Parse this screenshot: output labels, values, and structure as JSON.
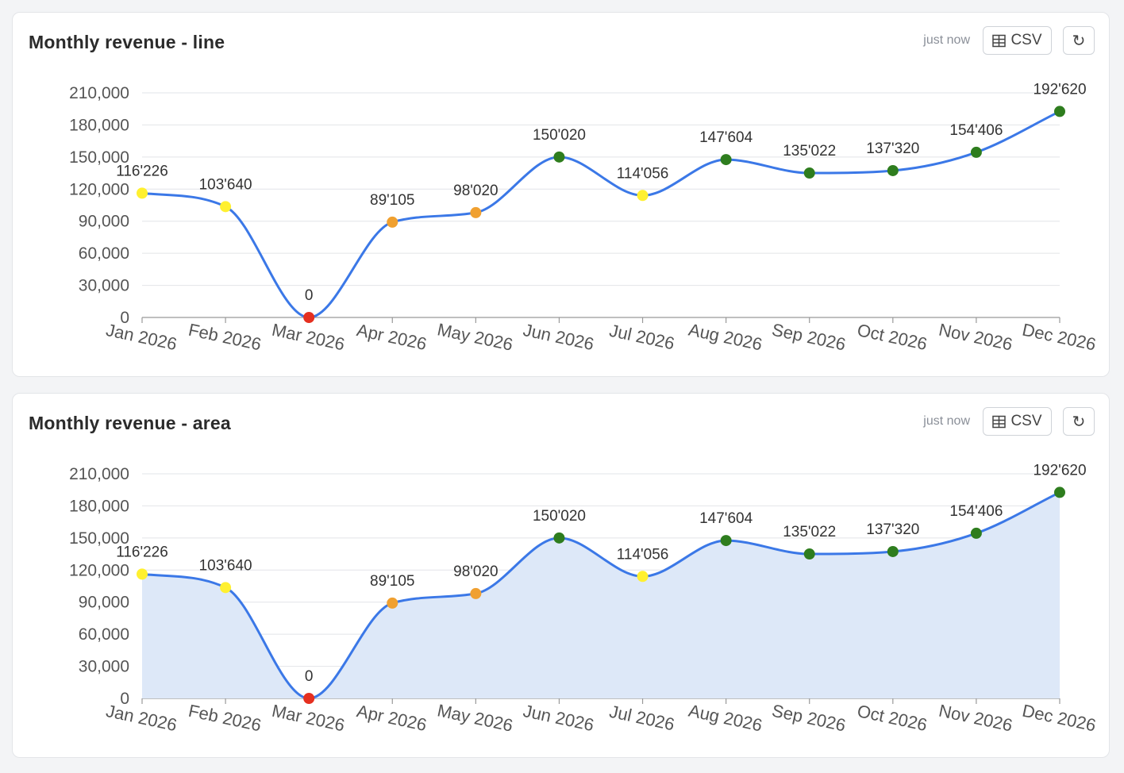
{
  "colors": {
    "line": "#3b78e7",
    "area_fill": "#dde8f8",
    "grid": "#e2e4e8",
    "low": "#e53020",
    "mid": "#f0a030",
    "warn": "#fff030",
    "good": "#2e7d1e"
  },
  "icons": {
    "csv": "table-grid-icon",
    "refresh": "refresh-icon"
  },
  "cards": [
    {
      "title": "Monthly revenue - line",
      "timestamp": "just now",
      "csv_label": "CSV",
      "refresh_label": "↻"
    },
    {
      "title": "Monthly revenue - area",
      "timestamp": "just now",
      "csv_label": "CSV",
      "refresh_label": "↻"
    }
  ],
  "chart_data": [
    {
      "type": "line",
      "categories": [
        "Jan 2026",
        "Feb 2026",
        "Mar 2026",
        "Apr 2026",
        "May 2026",
        "Jun 2026",
        "Jul 2026",
        "Aug 2026",
        "Sep 2026",
        "Oct 2026",
        "Nov 2026",
        "Dec 2026"
      ],
      "values": [
        116226,
        103640,
        0,
        89105,
        98020,
        150020,
        114056,
        147604,
        135022,
        137320,
        154406,
        192620
      ],
      "data_labels": [
        "116'226",
        "103'640",
        "0",
        "89'105",
        "98'020",
        "150'020",
        "114'056",
        "147'604",
        "135'022",
        "137'320",
        "154'406",
        "192'620"
      ],
      "point_colors": [
        "warn",
        "warn",
        "low",
        "mid",
        "mid",
        "good",
        "warn",
        "good",
        "good",
        "good",
        "good",
        "good"
      ],
      "yticks": [
        "0",
        "30,000",
        "60,000",
        "90,000",
        "120,000",
        "150,000",
        "180,000",
        "210,000"
      ],
      "ylim": [
        0,
        210000
      ],
      "grid": true,
      "smooth": true
    },
    {
      "type": "area",
      "categories": [
        "Jan 2026",
        "Feb 2026",
        "Mar 2026",
        "Apr 2026",
        "May 2026",
        "Jun 2026",
        "Jul 2026",
        "Aug 2026",
        "Sep 2026",
        "Oct 2026",
        "Nov 2026",
        "Dec 2026"
      ],
      "values": [
        116226,
        103640,
        0,
        89105,
        98020,
        150020,
        114056,
        147604,
        135022,
        137320,
        154406,
        192620
      ],
      "data_labels": [
        "116'226",
        "103'640",
        "0",
        "89'105",
        "98'020",
        "150'020",
        "114'056",
        "147'604",
        "135'022",
        "137'320",
        "154'406",
        "192'620"
      ],
      "point_colors": [
        "warn",
        "warn",
        "low",
        "mid",
        "mid",
        "good",
        "warn",
        "good",
        "good",
        "good",
        "good",
        "good"
      ],
      "yticks": [
        "0",
        "30,000",
        "60,000",
        "90,000",
        "120,000",
        "150,000",
        "180,000",
        "210,000"
      ],
      "ylim": [
        0,
        210000
      ],
      "grid": true,
      "smooth": true
    }
  ]
}
